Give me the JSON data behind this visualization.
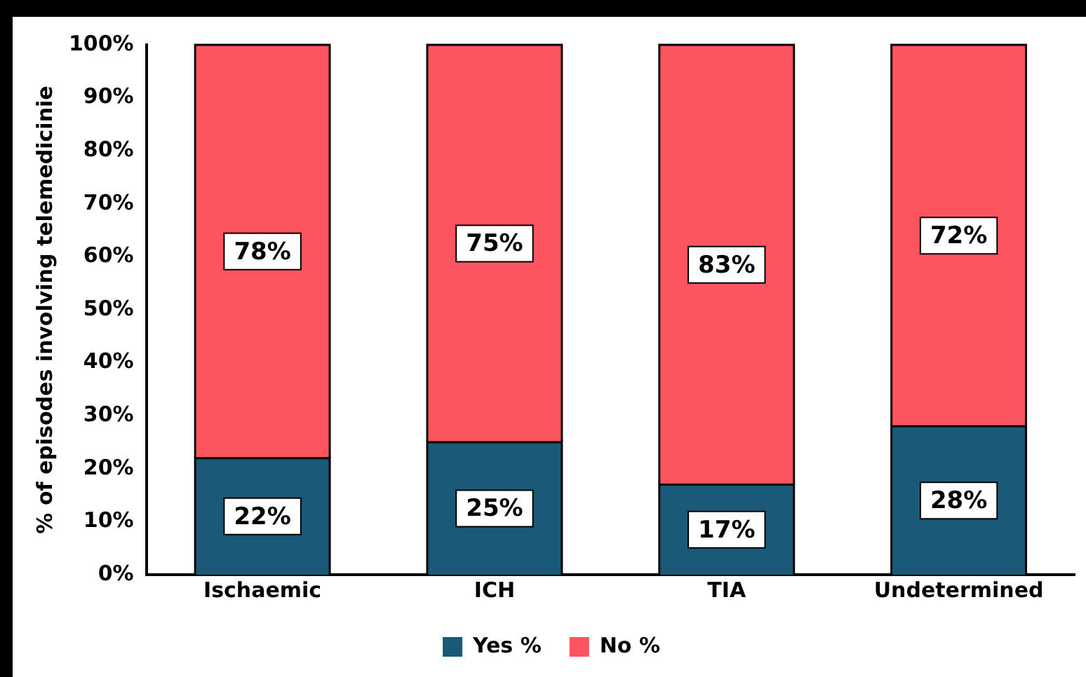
{
  "chart_data": {
    "type": "bar",
    "stacked": true,
    "ylabel": "% of episodes involving telemedicinie",
    "categories": [
      "Ischaemic",
      "ICH",
      "TIA",
      "Undetermined"
    ],
    "series": [
      {
        "name": "Yes %",
        "color": "#1a5a78",
        "values": [
          22,
          25,
          17,
          28
        ],
        "value_labels": [
          "22%",
          "25%",
          "17%",
          "28%"
        ]
      },
      {
        "name": "No %",
        "color": "#fc5560",
        "values": [
          78,
          75,
          83,
          72
        ],
        "value_labels": [
          "78%",
          "75%",
          "83%",
          "72%"
        ]
      }
    ],
    "ylim": [
      0,
      100
    ],
    "yticks": [
      {
        "value": 0,
        "label": "0%"
      },
      {
        "value": 10,
        "label": "10%"
      },
      {
        "value": 20,
        "label": "20%"
      },
      {
        "value": 30,
        "label": "30%"
      },
      {
        "value": 40,
        "label": "40%"
      },
      {
        "value": 50,
        "label": "50%"
      },
      {
        "value": 60,
        "label": "60%"
      },
      {
        "value": 70,
        "label": "70%"
      },
      {
        "value": 80,
        "label": "80%"
      },
      {
        "value": 90,
        "label": "90%"
      },
      {
        "value": 100,
        "label": "100%"
      }
    ],
    "grid": false,
    "legend": "bottom"
  }
}
